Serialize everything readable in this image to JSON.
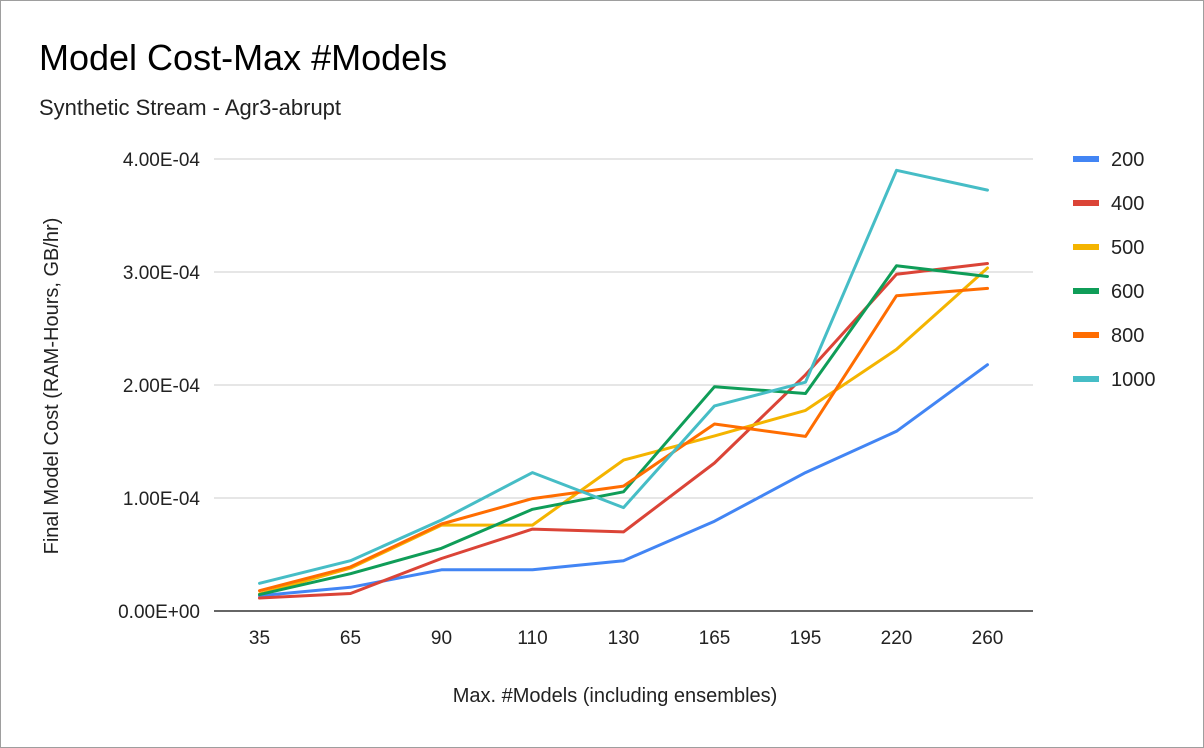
{
  "chart_data": {
    "type": "line",
    "title": "Model Cost-Max #Models",
    "subtitle": "Synthetic Stream - Agr3-abrupt",
    "xlabel": "Max. #Models (including ensembles)",
    "ylabel": "Final Model Cost (RAM-Hours, GB/hr)",
    "categories": [
      "35",
      "65",
      "90",
      "110",
      "130",
      "165",
      "195",
      "220",
      "260"
    ],
    "ylim": [
      0,
      0.0004
    ],
    "yticks": [
      {
        "value": 0,
        "label": "0.00E+00"
      },
      {
        "value": 0.0001,
        "label": "1.00E-04"
      },
      {
        "value": 0.0002,
        "label": "2.00E-04"
      },
      {
        "value": 0.0003,
        "label": "3.00E-04"
      },
      {
        "value": 0.0004,
        "label": "4.00E-04"
      }
    ],
    "grid": true,
    "legend_position": "right",
    "series": [
      {
        "name": "200",
        "color": "#4285f4",
        "values": [
          1.35e-05,
          2.1e-05,
          3.65e-05,
          3.65e-05,
          4.45e-05,
          7.95e-05,
          0.0001225,
          0.000159,
          0.000218
        ]
      },
      {
        "name": "400",
        "color": "#db4437",
        "values": [
          1.15e-05,
          1.55e-05,
          4.65e-05,
          7.25e-05,
          7e-05,
          0.000131,
          0.000209,
          0.000298,
          0.0003075
        ]
      },
      {
        "name": "500",
        "color": "#f4b400",
        "values": [
          1.5e-05,
          3.8e-05,
          7.6e-05,
          7.6e-05,
          0.0001335,
          0.000155,
          0.0001775,
          0.0002315,
          0.0003035
        ]
      },
      {
        "name": "600",
        "color": "#0f9d58",
        "values": [
          1.45e-05,
          3.3e-05,
          5.55e-05,
          9e-05,
          0.0001055,
          0.0001985,
          0.0001925,
          0.0003055,
          0.000296
        ]
      },
      {
        "name": "800",
        "color": "#ff6d01",
        "values": [
          1.8e-05,
          3.9e-05,
          7.7e-05,
          9.95e-05,
          0.0001105,
          0.0001655,
          0.0001545,
          0.000279,
          0.0002855
        ]
      },
      {
        "name": "1000",
        "color": "#46bdc6",
        "values": [
          2.45e-05,
          4.45e-05,
          8.05e-05,
          0.0001225,
          9.15e-05,
          0.0001815,
          0.0002025,
          0.00039,
          0.0003725
        ]
      }
    ]
  }
}
